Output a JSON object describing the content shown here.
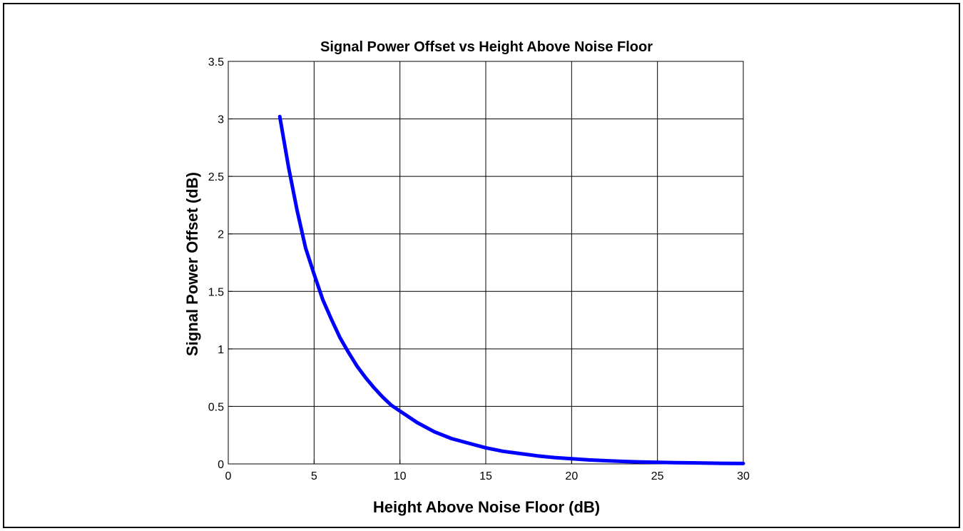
{
  "chart_data": {
    "type": "line",
    "title": "Signal Power Offset vs Height Above Noise Floor",
    "xlabel": "Height Above Noise Floor (dB)",
    "ylabel": "Signal Power Offset (dB)",
    "xlim": [
      0,
      30
    ],
    "ylim": [
      0,
      3.5
    ],
    "xticks": [
      0,
      5,
      10,
      15,
      20,
      25,
      30
    ],
    "yticks": [
      0,
      0.5,
      1,
      1.5,
      2,
      2.5,
      3,
      3.5
    ],
    "xtick_labels": [
      "0",
      "5",
      "10",
      "15",
      "20",
      "25",
      "30"
    ],
    "ytick_labels": [
      "0",
      "0.5",
      "1",
      "1.5",
      "2",
      "2.5",
      "3",
      "3.5"
    ],
    "grid": true,
    "line_color": "#0000ff",
    "series": [
      {
        "x": [
          3,
          3.5,
          4,
          4.5,
          5,
          5.5,
          6,
          6.5,
          7,
          7.5,
          8,
          8.5,
          9,
          9.5,
          10,
          11,
          12,
          13,
          14,
          15,
          16,
          17,
          18,
          19,
          20,
          21,
          22,
          23,
          24,
          25,
          26,
          27,
          28,
          29,
          30
        ],
        "y": [
          3.02,
          2.59,
          2.21,
          1.88,
          1.65,
          1.43,
          1.26,
          1.1,
          0.97,
          0.85,
          0.75,
          0.66,
          0.58,
          0.51,
          0.46,
          0.36,
          0.28,
          0.22,
          0.18,
          0.14,
          0.11,
          0.09,
          0.07,
          0.055,
          0.045,
          0.035,
          0.028,
          0.022,
          0.017,
          0.014,
          0.011,
          0.009,
          0.007,
          0.005,
          0.004
        ]
      }
    ]
  }
}
